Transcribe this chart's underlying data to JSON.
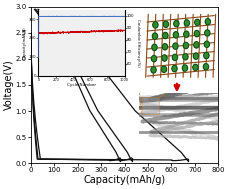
{
  "xlabel": "Capacity(mAh/g)",
  "ylabel": "Voltage(V)",
  "xlim": [
    0,
    800
  ],
  "ylim": [
    0,
    3.0
  ],
  "xticks": [
    0,
    100,
    200,
    300,
    400,
    500,
    600,
    700,
    800
  ],
  "yticks": [
    0.0,
    0.5,
    1.0,
    1.5,
    2.0,
    2.5,
    3.0
  ],
  "main_curve_color": "#111111",
  "inset_blue_color": "#4472c4",
  "inset_red_color": "#cc0000",
  "inset_xlabel": "Cycle Number",
  "inset_ylabel_left": "Capacity(mAh/g)",
  "inset_ylabel_right": "Coulombic Efficiency(%)",
  "background_color": "#ffffff",
  "label_fontsize": 7,
  "tick_fontsize": 5,
  "inset_bg": "#f0f0f0",
  "graphite_color": "#8B4513",
  "cr2o3_color": "#2d8c2d",
  "arrow_color": "#cc0000",
  "tem_bg": "#555555"
}
